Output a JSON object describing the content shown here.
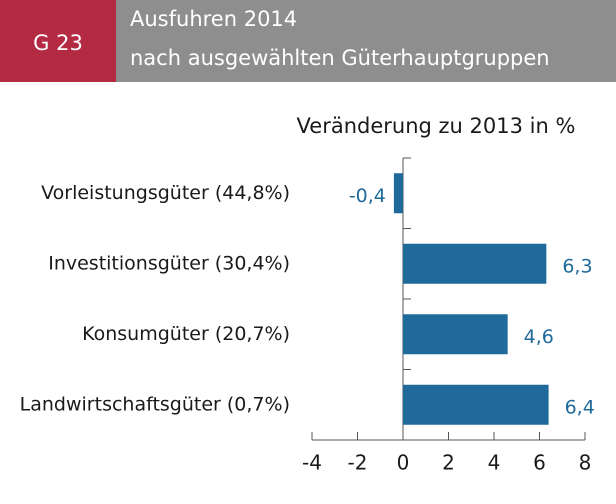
{
  "chart_data": {
    "type": "barh",
    "label": "G 23",
    "title": [
      "Ausfuhren 2014",
      "nach ausgewählten Güterhauptgruppen"
    ],
    "subtitle": "Veränderung zu 2013 in %",
    "categories": [
      "Vorleistungsgüter (44,8%)",
      "Investitionsgüter (30,4%)",
      "Konsumgüter (20,7%)",
      "Landwirtschaftsgüter (0,7%)"
    ],
    "values": [
      -0.4,
      6.3,
      4.6,
      6.4
    ],
    "value_labels": [
      "-0,4",
      "6,3",
      "4,6",
      "6,4"
    ],
    "color": "#1f6a9a",
    "xlim": [
      -4,
      8
    ],
    "xticks": [
      -4,
      -2,
      0,
      2,
      4,
      6,
      8
    ]
  }
}
